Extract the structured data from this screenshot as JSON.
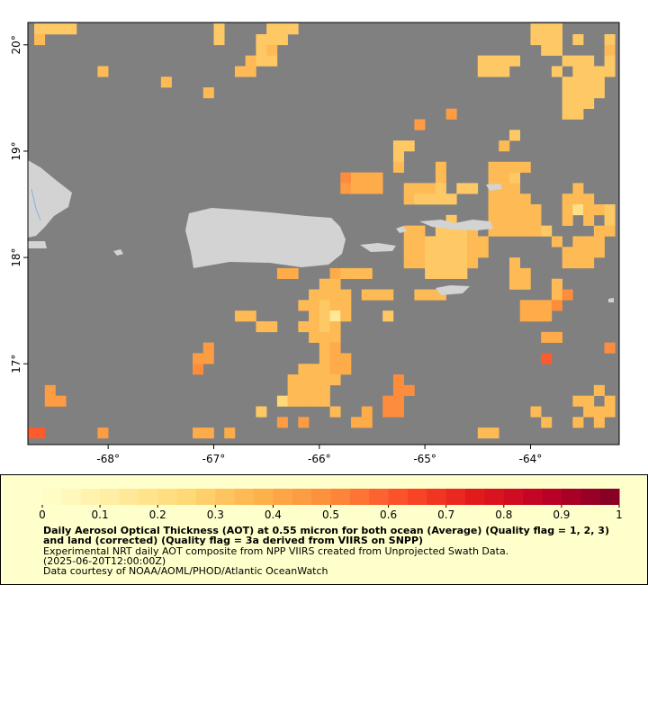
{
  "chart_data": {
    "type": "heatmap",
    "xlim": [
      -68.76,
      -63.16
    ],
    "ylim": [
      16.24,
      20.21
    ],
    "xticks": [
      {
        "value": -68,
        "label": "-68°"
      },
      {
        "value": -67,
        "label": "-67°"
      },
      {
        "value": -66,
        "label": "-66°"
      },
      {
        "value": -65,
        "label": "-65°"
      },
      {
        "value": -64,
        "label": "-64°"
      }
    ],
    "yticks": [
      {
        "value": 17,
        "label": "17°"
      },
      {
        "value": 18,
        "label": "18°"
      },
      {
        "value": 19,
        "label": "19°"
      },
      {
        "value": 20,
        "label": "20°"
      }
    ],
    "colorbar": {
      "lim": [
        0,
        1
      ],
      "ticks": [
        0,
        0.1,
        0.2,
        0.3,
        0.4,
        0.5,
        0.6,
        0.7,
        0.8,
        0.9,
        1
      ],
      "colors": [
        "#ffffcc",
        "#ffeda0",
        "#fed976",
        "#feb24c",
        "#fd8d3c",
        "#fc4e2a",
        "#e31a1c",
        "#bd0026",
        "#800026"
      ]
    },
    "title": "Daily Aerosol Optical Thickness (AOT) at 0.55 micron for both ocean (Average) (Quality flag = 1, 2, 3) and land (corrected) (Quality flag = 3a derived from VIIRS on SNPP)",
    "description": [
      "Experimental NRT daily AOT composite from NPP VIIRS created from Unprojected Swath Data.",
      "(2025-06-20T12:00:00Z)",
      "Data courtesy of NOAA/AOML/PHOD/Atlantic OceanWatch"
    ],
    "cells": [
      [
        -68.65,
        20.15,
        0.3
      ],
      [
        -68.55,
        20.15,
        0.3
      ],
      [
        -68.45,
        20.15,
        0.3
      ],
      [
        -68.35,
        20.15,
        0.3
      ],
      [
        -68.65,
        20.05,
        0.35
      ],
      [
        -68.05,
        19.75,
        0.35
      ],
      [
        -67.45,
        19.65,
        0.35
      ],
      [
        -67.05,
        19.55,
        0.35
      ],
      [
        -66.95,
        20.15,
        0.3
      ],
      [
        -66.95,
        20.05,
        0.3
      ],
      [
        -66.45,
        20.15,
        0.3
      ],
      [
        -66.35,
        20.15,
        0.3
      ],
      [
        -66.25,
        20.15,
        0.3
      ],
      [
        -66.55,
        20.05,
        0.3
      ],
      [
        -66.45,
        20.05,
        0.3
      ],
      [
        -66.35,
        20.05,
        0.3
      ],
      [
        -66.55,
        19.95,
        0.3
      ],
      [
        -66.45,
        19.95,
        0.35
      ],
      [
        -66.65,
        19.85,
        0.35
      ],
      [
        -66.55,
        19.85,
        0.3
      ],
      [
        -66.45,
        19.85,
        0.3
      ],
      [
        -66.75,
        19.75,
        0.35
      ],
      [
        -66.65,
        19.75,
        0.35
      ],
      [
        -64.75,
        19.35,
        0.45
      ],
      [
        -65.05,
        19.25,
        0.45
      ],
      [
        -65.25,
        19.05,
        0.3
      ],
      [
        -65.15,
        19.05,
        0.3
      ],
      [
        -65.25,
        18.95,
        0.3
      ],
      [
        -65.25,
        18.85,
        0.35
      ],
      [
        -64.15,
        19.15,
        0.3
      ],
      [
        -64.25,
        19.05,
        0.35
      ],
      [
        -64.85,
        18.85,
        0.35
      ],
      [
        -64.35,
        18.85,
        0.35
      ],
      [
        -64.25,
        18.85,
        0.35
      ],
      [
        -64.15,
        18.85,
        0.35
      ],
      [
        -64.05,
        18.85,
        0.35
      ],
      [
        -64.85,
        18.75,
        0.35
      ],
      [
        -64.35,
        18.75,
        0.35
      ],
      [
        -64.25,
        18.75,
        0.35
      ],
      [
        -64.15,
        18.75,
        0.3
      ],
      [
        -65.75,
        18.75,
        0.5
      ],
      [
        -65.65,
        18.75,
        0.4
      ],
      [
        -65.55,
        18.75,
        0.4
      ],
      [
        -65.45,
        18.75,
        0.4
      ],
      [
        -65.75,
        18.65,
        0.45
      ],
      [
        -65.65,
        18.65,
        0.4
      ],
      [
        -65.55,
        18.65,
        0.4
      ],
      [
        -65.45,
        18.65,
        0.4
      ],
      [
        -65.15,
        18.65,
        0.35
      ],
      [
        -65.05,
        18.65,
        0.35
      ],
      [
        -64.95,
        18.65,
        0.35
      ],
      [
        -64.85,
        18.65,
        0.3
      ],
      [
        -64.65,
        18.65,
        0.3
      ],
      [
        -64.55,
        18.65,
        0.3
      ],
      [
        -64.35,
        18.65,
        0.35
      ],
      [
        -64.25,
        18.65,
        0.35
      ],
      [
        -64.15,
        18.65,
        0.35
      ],
      [
        -63.55,
        18.65,
        0.35
      ],
      [
        -65.15,
        18.55,
        0.35
      ],
      [
        -65.05,
        18.55,
        0.3
      ],
      [
        -64.95,
        18.55,
        0.3
      ],
      [
        -64.85,
        18.55,
        0.3
      ],
      [
        -64.75,
        18.55,
        0.3
      ],
      [
        -64.35,
        18.55,
        0.35
      ],
      [
        -64.25,
        18.55,
        0.35
      ],
      [
        -64.15,
        18.55,
        0.35
      ],
      [
        -64.05,
        18.55,
        0.35
      ],
      [
        -63.65,
        18.55,
        0.35
      ],
      [
        -63.55,
        18.55,
        0.35
      ],
      [
        -63.45,
        18.55,
        0.35
      ],
      [
        -64.35,
        18.45,
        0.35
      ],
      [
        -64.25,
        18.45,
        0.35
      ],
      [
        -64.15,
        18.45,
        0.35
      ],
      [
        -64.05,
        18.45,
        0.35
      ],
      [
        -63.95,
        18.45,
        0.35
      ],
      [
        -63.65,
        18.45,
        0.35
      ],
      [
        -63.55,
        18.45,
        0.2
      ],
      [
        -63.45,
        18.45,
        0.35
      ],
      [
        -63.35,
        18.45,
        0.35
      ],
      [
        -63.25,
        18.45,
        0.3
      ],
      [
        -64.75,
        18.35,
        0.3
      ],
      [
        -64.35,
        18.35,
        0.35
      ],
      [
        -64.25,
        18.35,
        0.35
      ],
      [
        -64.15,
        18.35,
        0.35
      ],
      [
        -64.05,
        18.35,
        0.35
      ],
      [
        -63.95,
        18.35,
        0.35
      ],
      [
        -63.65,
        18.35,
        0.35
      ],
      [
        -63.45,
        18.35,
        0.35
      ],
      [
        -63.25,
        18.35,
        0.3
      ],
      [
        -65.15,
        18.25,
        0.35
      ],
      [
        -65.05,
        18.25,
        0.35
      ],
      [
        -64.85,
        18.25,
        0.3
      ],
      [
        -64.75,
        18.25,
        0.3
      ],
      [
        -64.65,
        18.25,
        0.3
      ],
      [
        -64.55,
        18.25,
        0.35
      ],
      [
        -64.35,
        18.25,
        0.35
      ],
      [
        -64.25,
        18.25,
        0.35
      ],
      [
        -64.15,
        18.25,
        0.35
      ],
      [
        -64.05,
        18.25,
        0.35
      ],
      [
        -63.95,
        18.25,
        0.35
      ],
      [
        -63.85,
        18.25,
        0.3
      ],
      [
        -63.35,
        18.25,
        0.35
      ],
      [
        -63.25,
        18.25,
        0.35
      ],
      [
        -65.15,
        18.15,
        0.35
      ],
      [
        -65.05,
        18.15,
        0.35
      ],
      [
        -64.95,
        18.15,
        0.3
      ],
      [
        -64.85,
        18.15,
        0.3
      ],
      [
        -64.75,
        18.15,
        0.3
      ],
      [
        -64.65,
        18.15,
        0.3
      ],
      [
        -64.55,
        18.15,
        0.35
      ],
      [
        -64.45,
        18.15,
        0.35
      ],
      [
        -63.75,
        18.15,
        0.35
      ],
      [
        -63.55,
        18.15,
        0.35
      ],
      [
        -63.45,
        18.15,
        0.35
      ],
      [
        -63.35,
        18.15,
        0.35
      ],
      [
        -65.15,
        18.05,
        0.35
      ],
      [
        -65.05,
        18.05,
        0.35
      ],
      [
        -64.95,
        18.05,
        0.3
      ],
      [
        -64.85,
        18.05,
        0.3
      ],
      [
        -64.75,
        18.05,
        0.3
      ],
      [
        -64.65,
        18.05,
        0.3
      ],
      [
        -64.55,
        18.05,
        0.35
      ],
      [
        -64.45,
        18.05,
        0.35
      ],
      [
        -63.65,
        18.05,
        0.35
      ],
      [
        -63.55,
        18.05,
        0.35
      ],
      [
        -63.45,
        18.05,
        0.35
      ],
      [
        -63.35,
        18.05,
        0.35
      ],
      [
        -65.15,
        17.95,
        0.35
      ],
      [
        -65.05,
        17.95,
        0.35
      ],
      [
        -64.95,
        17.95,
        0.3
      ],
      [
        -64.85,
        17.95,
        0.3
      ],
      [
        -64.75,
        17.95,
        0.3
      ],
      [
        -64.65,
        17.95,
        0.3
      ],
      [
        -64.55,
        17.95,
        0.35
      ],
      [
        -64.15,
        17.95,
        0.35
      ],
      [
        -63.65,
        17.95,
        0.35
      ],
      [
        -63.55,
        17.95,
        0.35
      ],
      [
        -63.45,
        17.95,
        0.35
      ],
      [
        -64.95,
        17.85,
        0.3
      ],
      [
        -64.85,
        17.85,
        0.3
      ],
      [
        -64.75,
        17.85,
        0.3
      ],
      [
        -64.65,
        17.85,
        0.3
      ],
      [
        -64.15,
        17.85,
        0.35
      ],
      [
        -64.05,
        17.85,
        0.35
      ],
      [
        -64.15,
        17.75,
        0.35
      ],
      [
        -64.05,
        17.75,
        0.35
      ],
      [
        -63.75,
        17.75,
        0.35
      ],
      [
        -65.05,
        17.65,
        0.35
      ],
      [
        -64.95,
        17.65,
        0.35
      ],
      [
        -64.85,
        17.65,
        0.35
      ],
      [
        -63.75,
        17.65,
        0.35
      ],
      [
        -63.65,
        17.65,
        0.5
      ],
      [
        -64.05,
        17.55,
        0.4
      ],
      [
        -63.95,
        17.55,
        0.4
      ],
      [
        -63.85,
        17.55,
        0.4
      ],
      [
        -63.75,
        17.55,
        0.5
      ],
      [
        -64.05,
        17.45,
        0.4
      ],
      [
        -63.95,
        17.45,
        0.4
      ],
      [
        -63.85,
        17.45,
        0.4
      ],
      [
        -63.85,
        17.25,
        0.4
      ],
      [
        -63.75,
        17.25,
        0.4
      ],
      [
        -63.25,
        17.15,
        0.5
      ],
      [
        -63.85,
        17.05,
        0.6
      ],
      [
        -66.35,
        17.85,
        0.4
      ],
      [
        -66.25,
        17.85,
        0.4
      ],
      [
        -65.85,
        17.85,
        0.4
      ],
      [
        -65.75,
        17.85,
        0.35
      ],
      [
        -65.65,
        17.85,
        0.35
      ],
      [
        -65.55,
        17.85,
        0.35
      ],
      [
        -65.95,
        17.75,
        0.35
      ],
      [
        -65.85,
        17.75,
        0.35
      ],
      [
        -66.05,
        17.65,
        0.35
      ],
      [
        -65.95,
        17.65,
        0.35
      ],
      [
        -65.85,
        17.65,
        0.35
      ],
      [
        -65.75,
        17.65,
        0.35
      ],
      [
        -65.55,
        17.65,
        0.35
      ],
      [
        -65.45,
        17.65,
        0.35
      ],
      [
        -65.35,
        17.65,
        0.35
      ],
      [
        -66.15,
        17.55,
        0.35
      ],
      [
        -66.05,
        17.55,
        0.35
      ],
      [
        -65.95,
        17.55,
        0.3
      ],
      [
        -65.85,
        17.55,
        0.35
      ],
      [
        -65.75,
        17.55,
        0.35
      ],
      [
        -66.05,
        17.45,
        0.35
      ],
      [
        -65.95,
        17.45,
        0.3
      ],
      [
        -65.85,
        17.45,
        0.15
      ],
      [
        -65.75,
        17.45,
        0.35
      ],
      [
        -65.35,
        17.45,
        0.3
      ],
      [
        -66.15,
        17.35,
        0.35
      ],
      [
        -66.05,
        17.35,
        0.35
      ],
      [
        -65.95,
        17.35,
        0.3
      ],
      [
        -65.85,
        17.35,
        0.35
      ],
      [
        -66.05,
        17.25,
        0.35
      ],
      [
        -65.95,
        17.25,
        0.35
      ],
      [
        -65.85,
        17.25,
        0.35
      ],
      [
        -65.95,
        17.15,
        0.35
      ],
      [
        -65.85,
        17.15,
        0.4
      ],
      [
        -65.95,
        17.05,
        0.35
      ],
      [
        -65.85,
        17.05,
        0.4
      ],
      [
        -65.75,
        17.05,
        0.4
      ],
      [
        -66.15,
        16.95,
        0.35
      ],
      [
        -66.05,
        16.95,
        0.35
      ],
      [
        -65.95,
        16.95,
        0.35
      ],
      [
        -65.85,
        16.95,
        0.4
      ],
      [
        -65.75,
        16.95,
        0.4
      ],
      [
        -66.25,
        16.85,
        0.35
      ],
      [
        -66.15,
        16.85,
        0.35
      ],
      [
        -66.05,
        16.85,
        0.35
      ],
      [
        -65.95,
        16.85,
        0.35
      ],
      [
        -65.85,
        16.85,
        0.35
      ],
      [
        -65.25,
        16.85,
        0.5
      ],
      [
        -66.25,
        16.75,
        0.35
      ],
      [
        -66.15,
        16.75,
        0.35
      ],
      [
        -66.05,
        16.75,
        0.35
      ],
      [
        -65.95,
        16.75,
        0.35
      ],
      [
        -65.25,
        16.75,
        0.5
      ],
      [
        -65.15,
        16.75,
        0.5
      ],
      [
        -66.35,
        16.65,
        0.25
      ],
      [
        -66.25,
        16.65,
        0.35
      ],
      [
        -66.15,
        16.65,
        0.35
      ],
      [
        -66.05,
        16.65,
        0.35
      ],
      [
        -65.95,
        16.65,
        0.35
      ],
      [
        -65.35,
        16.65,
        0.5
      ],
      [
        -65.25,
        16.65,
        0.5
      ],
      [
        -66.55,
        16.55,
        0.3
      ],
      [
        -65.85,
        16.55,
        0.35
      ],
      [
        -65.35,
        16.55,
        0.5
      ],
      [
        -65.25,
        16.55,
        0.5
      ],
      [
        -66.75,
        17.45,
        0.35
      ],
      [
        -66.65,
        17.45,
        0.35
      ],
      [
        -66.55,
        17.35,
        0.35
      ],
      [
        -66.45,
        17.35,
        0.35
      ],
      [
        -67.05,
        17.15,
        0.45
      ],
      [
        -67.15,
        17.05,
        0.45
      ],
      [
        -67.05,
        17.05,
        0.45
      ],
      [
        -67.15,
        16.95,
        0.5
      ],
      [
        -68.55,
        16.75,
        0.45
      ],
      [
        -68.55,
        16.65,
        0.45
      ],
      [
        -68.45,
        16.65,
        0.45
      ],
      [
        -68.75,
        16.35,
        0.6
      ],
      [
        -68.65,
        16.35,
        0.6
      ],
      [
        -68.05,
        16.35,
        0.45
      ],
      [
        -67.15,
        16.35,
        0.4
      ],
      [
        -67.05,
        16.35,
        0.4
      ],
      [
        -66.85,
        16.35,
        0.4
      ],
      [
        -66.35,
        16.45,
        0.45
      ],
      [
        -66.15,
        16.45,
        0.45
      ],
      [
        -65.65,
        16.45,
        0.4
      ],
      [
        -65.55,
        16.45,
        0.4
      ],
      [
        -65.55,
        16.55,
        0.4
      ],
      [
        -64.45,
        16.35,
        0.35
      ],
      [
        -64.35,
        16.35,
        0.35
      ],
      [
        -63.95,
        16.55,
        0.35
      ],
      [
        -63.85,
        16.45,
        0.35
      ],
      [
        -63.55,
        16.65,
        0.35
      ],
      [
        -63.45,
        16.65,
        0.35
      ],
      [
        -63.35,
        16.75,
        0.35
      ],
      [
        -63.25,
        16.65,
        0.35
      ],
      [
        -63.45,
        16.55,
        0.35
      ],
      [
        -63.35,
        16.55,
        0.35
      ],
      [
        -63.25,
        16.55,
        0.35
      ],
      [
        -63.55,
        16.45,
        0.35
      ],
      [
        -63.35,
        16.45,
        0.35
      ],
      [
        -63.95,
        20.15,
        0.3
      ],
      [
        -63.85,
        20.15,
        0.3
      ],
      [
        -63.75,
        20.15,
        0.3
      ],
      [
        -63.95,
        20.05,
        0.3
      ],
      [
        -63.85,
        20.05,
        0.3
      ],
      [
        -63.75,
        20.05,
        0.3
      ],
      [
        -63.55,
        20.05,
        0.3
      ],
      [
        -63.25,
        20.05,
        0.3
      ],
      [
        -63.85,
        19.95,
        0.3
      ],
      [
        -63.75,
        19.95,
        0.3
      ],
      [
        -63.25,
        19.95,
        0.35
      ],
      [
        -64.45,
        19.85,
        0.3
      ],
      [
        -64.35,
        19.85,
        0.3
      ],
      [
        -64.25,
        19.85,
        0.3
      ],
      [
        -64.15,
        19.85,
        0.3
      ],
      [
        -63.65,
        19.85,
        0.3
      ],
      [
        -63.55,
        19.85,
        0.3
      ],
      [
        -63.45,
        19.85,
        0.3
      ],
      [
        -63.25,
        19.85,
        0.3
      ],
      [
        -64.45,
        19.75,
        0.3
      ],
      [
        -64.35,
        19.75,
        0.3
      ],
      [
        -64.25,
        19.75,
        0.3
      ],
      [
        -63.75,
        19.75,
        0.3
      ],
      [
        -63.55,
        19.75,
        0.3
      ],
      [
        -63.45,
        19.75,
        0.3
      ],
      [
        -63.35,
        19.75,
        0.3
      ],
      [
        -63.25,
        19.75,
        0.3
      ],
      [
        -63.65,
        19.65,
        0.3
      ],
      [
        -63.55,
        19.65,
        0.3
      ],
      [
        -63.45,
        19.65,
        0.3
      ],
      [
        -63.35,
        19.65,
        0.3
      ],
      [
        -63.65,
        19.55,
        0.3
      ],
      [
        -63.55,
        19.55,
        0.3
      ],
      [
        -63.45,
        19.55,
        0.3
      ],
      [
        -63.35,
        19.55,
        0.3
      ],
      [
        -63.65,
        19.45,
        0.3
      ],
      [
        -63.55,
        19.45,
        0.3
      ],
      [
        -63.45,
        19.45,
        0.3
      ],
      [
        -63.65,
        19.35,
        0.3
      ],
      [
        -63.55,
        19.35,
        0.3
      ]
    ]
  }
}
